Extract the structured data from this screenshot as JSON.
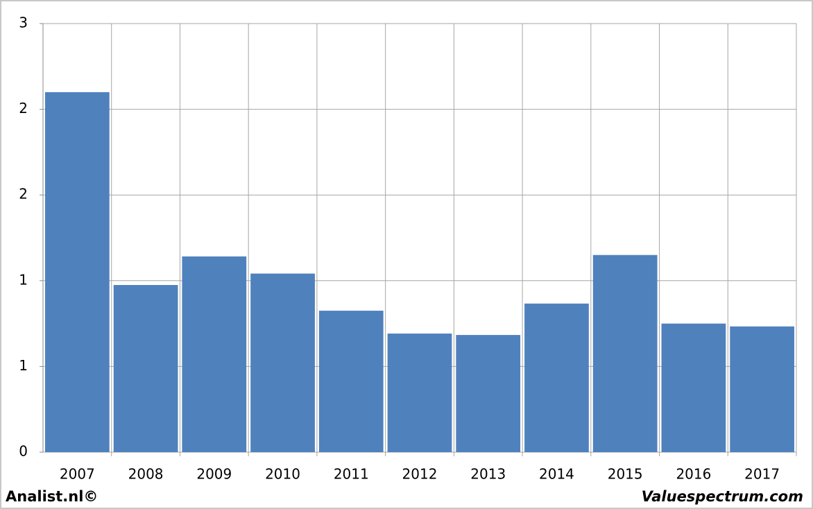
{
  "chart_data": {
    "type": "bar",
    "categories": [
      "2007",
      "2008",
      "2009",
      "2010",
      "2011",
      "2012",
      "2013",
      "2014",
      "2015",
      "2016",
      "2017"
    ],
    "values": [
      2.52,
      1.17,
      1.37,
      1.25,
      0.99,
      0.83,
      0.82,
      1.04,
      1.38,
      0.9,
      0.88
    ],
    "color": "#4f81bd",
    "ylim": [
      0,
      3
    ],
    "yticks": [
      0,
      {
        "value": 0.6,
        "label": "1"
      },
      {
        "value": 1.2,
        "label": "1"
      },
      {
        "value": 1.8,
        "label": "2"
      },
      {
        "value": 2.4,
        "label": "2"
      },
      3
    ],
    "grid": true
  },
  "footer": {
    "left": "Analist.nl©",
    "right": "Valuespectrum.com"
  }
}
